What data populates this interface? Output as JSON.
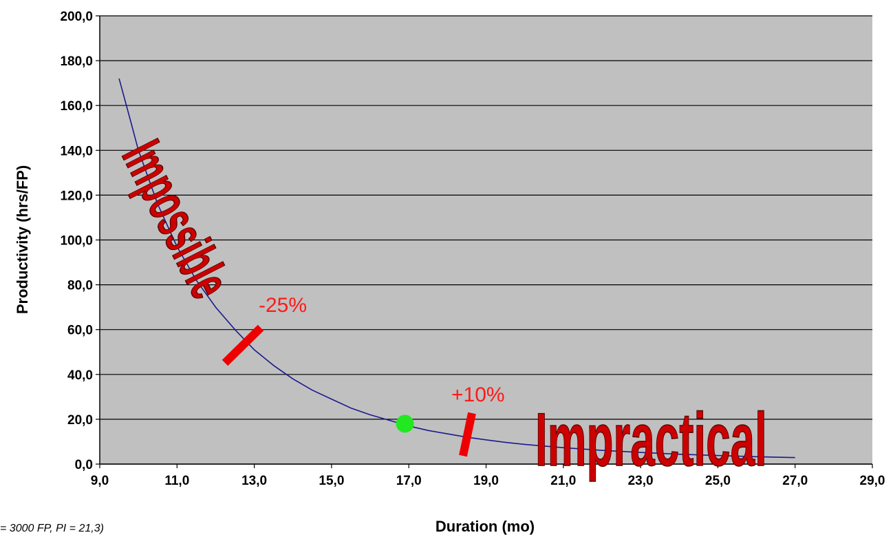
{
  "chart_data": {
    "type": "line",
    "xlabel": "Duration (mo)",
    "ylabel": "Productivity (hrs/FP)",
    "xlim": [
      9.0,
      29.0
    ],
    "ylim": [
      0.0,
      200.0
    ],
    "xticks": [
      "9,0",
      "11,0",
      "13,0",
      "15,0",
      "17,0",
      "19,0",
      "21,0",
      "23,0",
      "25,0",
      "27,0",
      "29,0"
    ],
    "yticks": [
      "0,0",
      "20,0",
      "40,0",
      "60,0",
      "80,0",
      "100,0",
      "120,0",
      "140,0",
      "160,0",
      "180,0",
      "200,0"
    ],
    "grid": "horizontal",
    "plot_background": "#c0c0c0",
    "series": [
      {
        "color": "#1a1a8c",
        "x": [
          9.5,
          9.8,
          10.0,
          10.5,
          11.0,
          11.5,
          12.0,
          12.5,
          13.0,
          13.5,
          14.0,
          14.5,
          15.0,
          15.5,
          16.0,
          16.5,
          17.0,
          17.5,
          18.0,
          18.5,
          19.0,
          19.5,
          20.0,
          21.0,
          22.0,
          23.0,
          24.0,
          25.0,
          26.0,
          27.0
        ],
        "y": [
          172,
          153,
          140,
          116,
          97,
          82,
          70,
          60,
          51,
          44,
          38,
          33,
          29,
          25,
          22,
          19.5,
          17,
          15,
          13.5,
          12,
          10.8,
          9.7,
          8.8,
          7.3,
          6.1,
          5.2,
          4.4,
          3.8,
          3.3,
          2.9
        ]
      }
    ],
    "marker": {
      "x": 16.9,
      "y": 18.0,
      "color": "#22e822"
    },
    "annotations": [
      {
        "text": "Impossible",
        "color": "#cc0000"
      },
      {
        "text": "Impractical",
        "color": "#cc0000"
      },
      {
        "text": "-25%",
        "color": "#ff1a1a"
      },
      {
        "text": "+10%",
        "color": "#ff1a1a"
      }
    ],
    "footnote": "= 3000 FP, PI = 21,3)"
  }
}
